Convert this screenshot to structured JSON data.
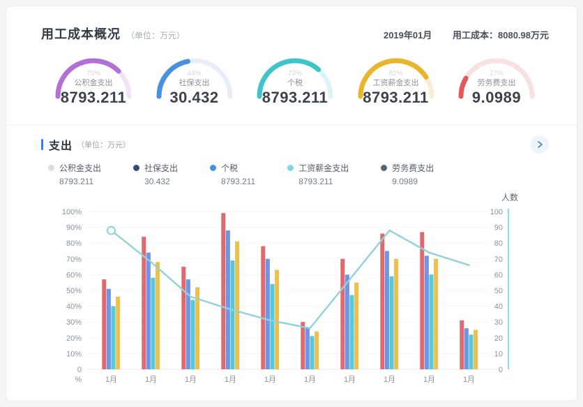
{
  "header": {
    "title": "用工成本概况",
    "unit": "（单位：万元）",
    "period": "2019年01月",
    "total_label": "用工成本：",
    "total_value": "8080.98万元"
  },
  "gauges": [
    {
      "pct": 75,
      "pct_label": "75%",
      "label": "公积金支出",
      "value": "8793.211",
      "color": "#b26fd6",
      "track": "#f1e4f6"
    },
    {
      "pct": 44,
      "pct_label": "44%",
      "label": "社保支出",
      "value": "30.432",
      "color": "#4a8fe2",
      "track": "#e9eef6"
    },
    {
      "pct": 73,
      "pct_label": "73%",
      "label": "个税",
      "value": "8793.211",
      "color": "#3fc4c9",
      "track": "#def3f3"
    },
    {
      "pct": 82,
      "pct_label": "82%",
      "label": "工资薪金支出",
      "value": "8793.211",
      "color": "#e9b52d",
      "track": "#f7eed6"
    },
    {
      "pct": 17,
      "pct_label": "17%",
      "label": "劳务费支出",
      "value": "9.0989",
      "color": "#e05a5c",
      "track": "#f7e1e1"
    }
  ],
  "expense_section": {
    "title": "支出",
    "unit": "（单位：万元）",
    "accent_color": "#3a7afe",
    "next_icon_color": "#4a7f96",
    "legend": [
      {
        "label": "公积金支出",
        "value": "8793.211",
        "color": "#d9dde3"
      },
      {
        "label": "社保支出",
        "value": "30.432",
        "color": "#2f4a7c"
      },
      {
        "label": "个税",
        "value": "8793.211",
        "color": "#4a8fe2"
      },
      {
        "label": "工资薪金支出",
        "value": "8793.211",
        "color": "#7fd8e8"
      },
      {
        "label": "劳务费支出",
        "value": "9.0989",
        "color": "#5a6470"
      }
    ]
  },
  "chart_data": {
    "type": "bar+line",
    "categories": [
      "1月",
      "1月",
      "1月",
      "1月",
      "1月",
      "1月",
      "1月",
      "1月",
      "1月",
      "1月"
    ],
    "series": [
      {
        "name": "bar-red",
        "type": "bar",
        "color": "#e0696e",
        "values": [
          57,
          84,
          65,
          99,
          78,
          30,
          70,
          86,
          87,
          31
        ]
      },
      {
        "name": "bar-blue",
        "type": "bar",
        "color": "#6e95e6",
        "values": [
          51,
          74,
          57,
          88,
          70,
          26,
          60,
          75,
          72,
          26
        ]
      },
      {
        "name": "bar-cyan",
        "type": "bar",
        "color": "#54c8dc",
        "values": [
          40,
          58,
          44,
          69,
          54,
          21,
          47,
          59,
          60,
          22
        ]
      },
      {
        "name": "bar-yellow",
        "type": "bar",
        "color": "#edc04e",
        "values": [
          46,
          68,
          52,
          81,
          63,
          24,
          55,
          70,
          70,
          25
        ]
      },
      {
        "name": "人数",
        "type": "line",
        "color": "#8fd3d8",
        "values": [
          88,
          68,
          46,
          38,
          31,
          26,
          57,
          88,
          74,
          66
        ]
      }
    ],
    "left_axis": {
      "ticks": [
        "100%",
        "90%",
        "80%",
        "70%",
        "60%",
        "50%",
        "40%",
        "30%",
        "20%",
        "10%",
        "0"
      ],
      "unit": "%",
      "range": [
        0,
        100
      ],
      "grid": true
    },
    "right_axis": {
      "title": "人数",
      "ticks": [
        "100",
        "90",
        "80",
        "70",
        "60",
        "50",
        "40",
        "30",
        "20",
        "10",
        "0"
      ],
      "range": [
        0,
        100
      ],
      "line_color": "#8adce8"
    },
    "legend_position": "top-left"
  }
}
